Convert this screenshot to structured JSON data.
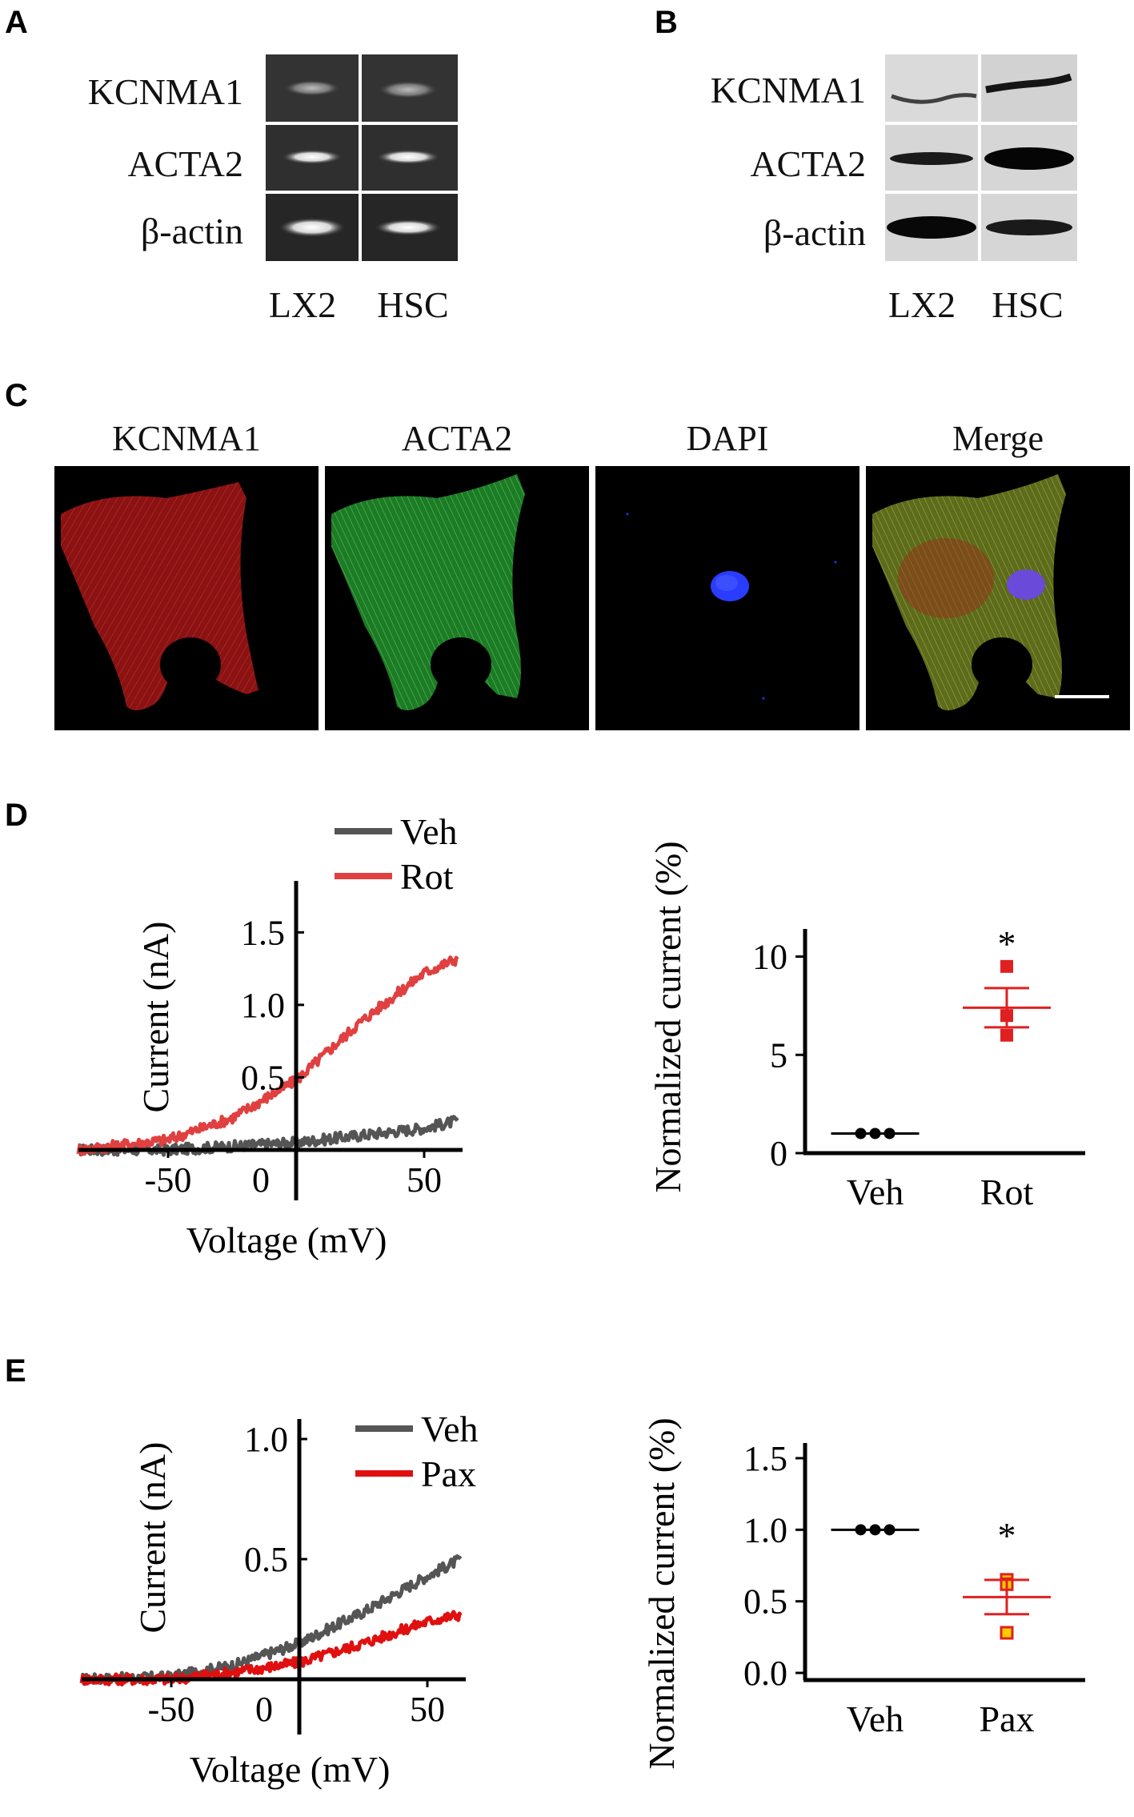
{
  "panels": {
    "A": {
      "letter": "A",
      "rows": [
        "KCNMA1",
        "ACTA2",
        "β-actin"
      ],
      "lanes": [
        "LX2",
        "HSC"
      ]
    },
    "B": {
      "letter": "B",
      "rows": [
        "KCNMA1",
        "ACTA2",
        "β-actin"
      ],
      "lanes": [
        "LX2",
        "HSC"
      ]
    },
    "C": {
      "letter": "C",
      "channels": [
        "KCNMA1",
        "ACTA2",
        "DAPI",
        "Merge"
      ],
      "colors": {
        "kcnma1": "#cc2222",
        "acta2": "#22aa33",
        "dapi": "#2233ee"
      }
    },
    "D": {
      "letter": "D"
    },
    "E": {
      "letter": "E"
    }
  },
  "chart_data": [
    {
      "id": "D-left",
      "type": "line",
      "xlabel": "Voltage (mV)",
      "ylabel": "Current (nA)",
      "xlim": [
        -85,
        65
      ],
      "ylim": [
        -0.05,
        1.8
      ],
      "xticks": [
        -50,
        0,
        50
      ],
      "yticks": [
        0.5,
        1.0,
        1.5
      ],
      "ytick_labels": [
        "0.5",
        "1.0",
        "1.5"
      ],
      "legend_position": "top",
      "series": [
        {
          "name": "Veh",
          "color": "#555555",
          "x": [
            -85,
            -50,
            0,
            50,
            63
          ],
          "y": [
            0.0,
            0.0,
            0.05,
            0.15,
            0.2
          ]
        },
        {
          "name": "Rot",
          "color": "#e04040",
          "x": [
            -85,
            -50,
            -25,
            0,
            25,
            50,
            63
          ],
          "y": [
            0.0,
            0.07,
            0.22,
            0.48,
            0.88,
            1.22,
            1.32
          ]
        }
      ]
    },
    {
      "id": "D-right",
      "type": "scatter",
      "ylabel": "Normalized current (%)",
      "categories": [
        "Veh",
        "Rot"
      ],
      "ylim": [
        0,
        11
      ],
      "yticks": [
        0,
        5,
        10
      ],
      "groups": [
        {
          "name": "Veh",
          "color": "#000000",
          "points": [
            1,
            1,
            1
          ],
          "mean": 1.0,
          "sem": 0
        },
        {
          "name": "Rot",
          "color": "#e02020",
          "points": [
            9.5,
            7.0,
            6.0
          ],
          "mean": 7.4,
          "sem": 1.0
        }
      ],
      "annotation": "*"
    },
    {
      "id": "E-left",
      "type": "line",
      "xlabel": "Voltage (mV)",
      "ylabel": "Current (nA)",
      "xlim": [
        -85,
        65
      ],
      "ylim": [
        -0.05,
        1.05
      ],
      "xticks": [
        -50,
        0,
        50
      ],
      "yticks": [
        0.5,
        1.0
      ],
      "ytick_labels": [
        "0.5",
        "1.0"
      ],
      "legend_position": "top-right",
      "series": [
        {
          "name": "Veh",
          "color": "#555555",
          "x": [
            -85,
            -50,
            -25,
            0,
            25,
            50,
            63
          ],
          "y": [
            0.0,
            0.01,
            0.06,
            0.15,
            0.28,
            0.43,
            0.5
          ]
        },
        {
          "name": "Pax",
          "color": "#e01010",
          "x": [
            -85,
            -50,
            -25,
            0,
            25,
            50,
            63
          ],
          "y": [
            0.0,
            0.0,
            0.03,
            0.07,
            0.15,
            0.24,
            0.27
          ]
        }
      ]
    },
    {
      "id": "E-right",
      "type": "scatter",
      "ylabel": "Normalized current (%)",
      "categories": [
        "Veh",
        "Pax"
      ],
      "ylim": [
        -0.05,
        1.55
      ],
      "yticks": [
        0.0,
        0.5,
        1.0,
        1.5
      ],
      "ytick_labels": [
        "0.0",
        "0.5",
        "1.0",
        "1.5"
      ],
      "groups": [
        {
          "name": "Veh",
          "color": "#000000",
          "points": [
            1,
            1,
            1
          ],
          "mean": 1.0,
          "sem": 0
        },
        {
          "name": "Pax",
          "color": "#e02020",
          "points": [
            0.65,
            0.62,
            0.28
          ],
          "mean": 0.53,
          "sem": 0.12
        }
      ],
      "annotation": "*"
    }
  ]
}
